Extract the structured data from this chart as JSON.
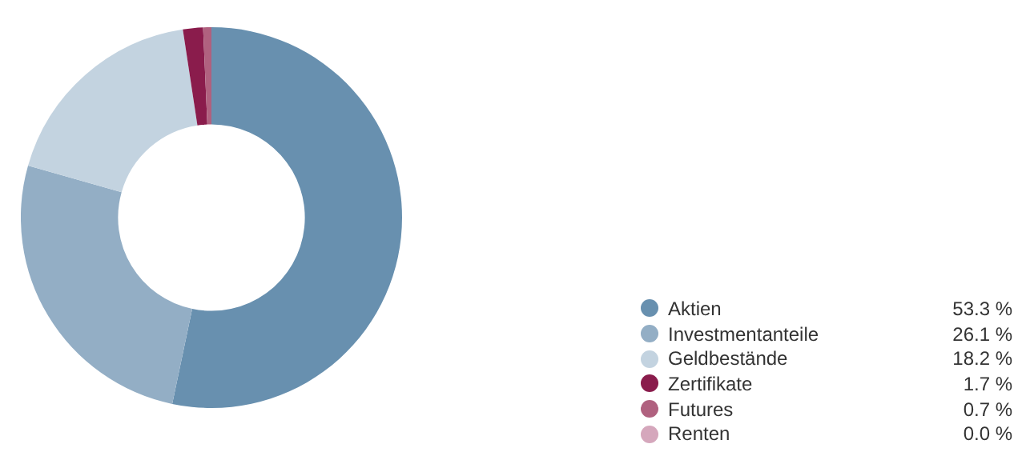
{
  "chart_data": {
    "type": "donut",
    "categories": [
      "Aktien",
      "Investmentanteile",
      "Geldbestände",
      "Zertifikate",
      "Futures",
      "Renten"
    ],
    "values": [
      53.3,
      26.1,
      18.2,
      1.7,
      0.7,
      0.0
    ],
    "value_labels": [
      "53.3 %",
      "26.1 %",
      "18.2 %",
      "1.7 %",
      "0.7 %",
      "0.0 %"
    ],
    "colors": [
      "#6890af",
      "#93aec5",
      "#c3d3e0",
      "#8a1c4c",
      "#b0617f",
      "#d5a7bc"
    ],
    "legend": "bottom right"
  }
}
